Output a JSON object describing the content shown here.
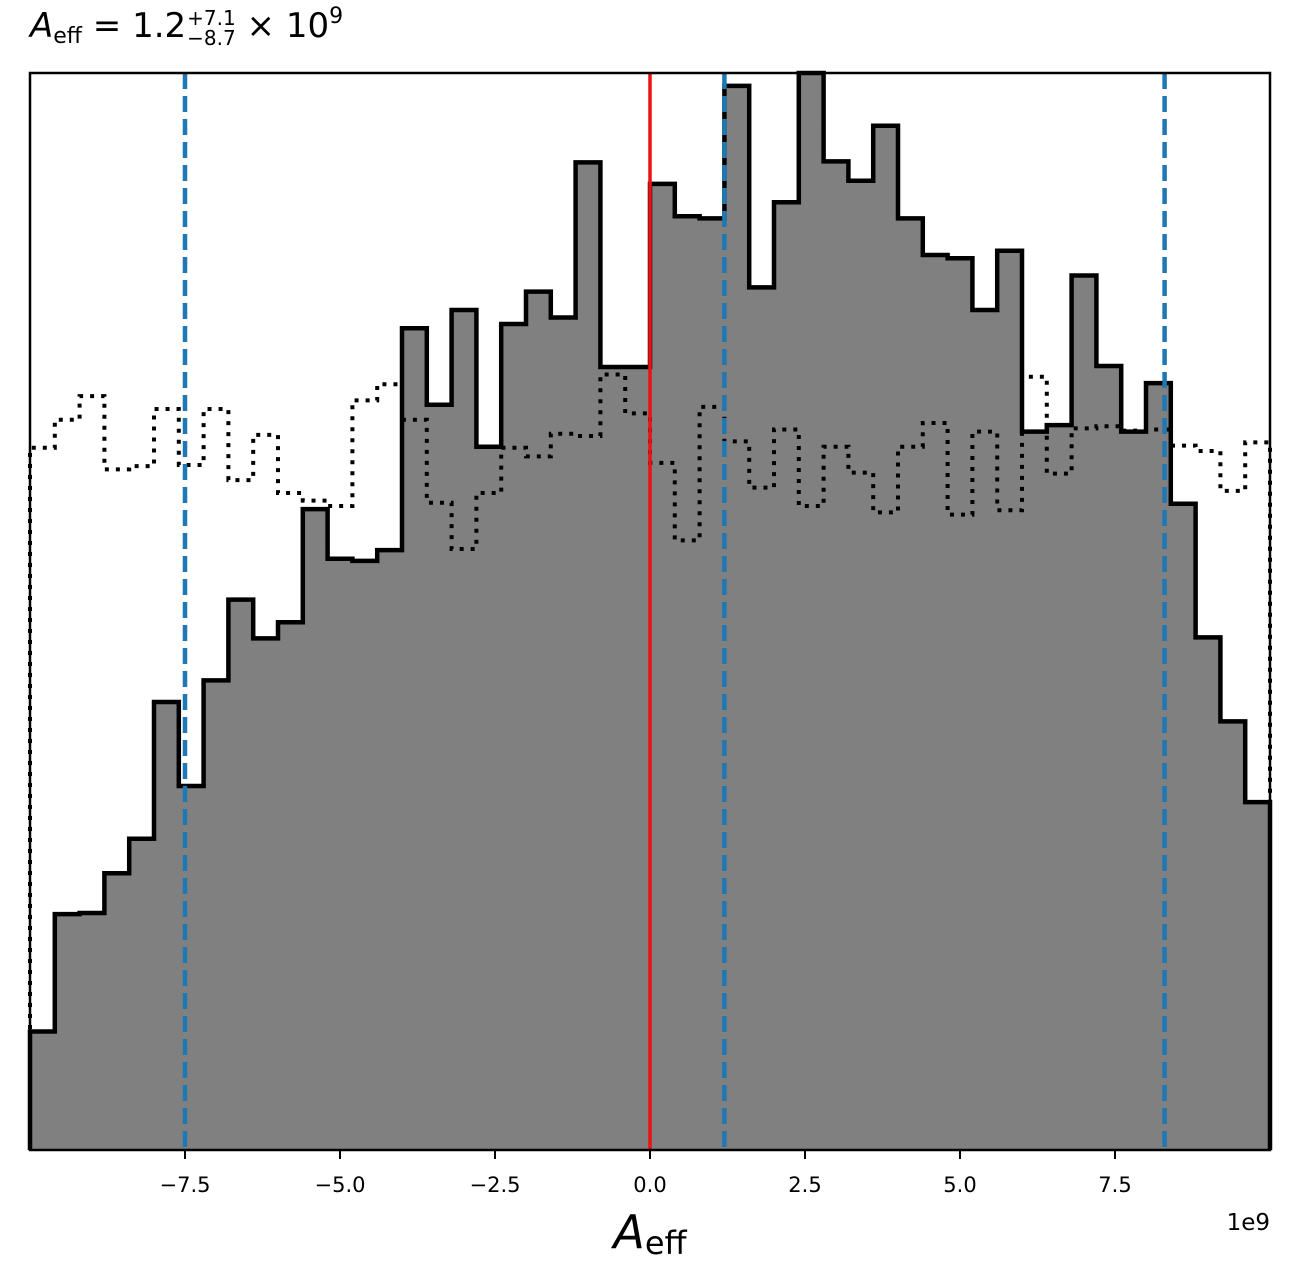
{
  "title": {
    "symbol": "A",
    "subscript": "eff",
    "equals": " = ",
    "median": "1.2",
    "upper": "+7.1",
    "lower": "−8.7",
    "times": " × 10",
    "exponent": "9"
  },
  "chart_data": {
    "type": "histogram",
    "xlabel_symbol": "A",
    "xlabel_subscript": "eff",
    "offset_label": "1e9",
    "xlim": [
      -10.0,
      10.0
    ],
    "ylim": [
      0,
      1.0
    ],
    "x_ticks": [
      -7.5,
      -5.0,
      -2.5,
      0.0,
      2.5,
      5.0,
      7.5
    ],
    "x_tick_labels": [
      "−7.5",
      "−5.0",
      "−2.5",
      "0.0",
      "2.5",
      "5.0",
      "7.5"
    ],
    "bin_edges": [
      -10.0,
      -9.6,
      -9.2,
      -8.8,
      -8.4,
      -8.0,
      -7.6,
      -7.2,
      -6.8,
      -6.4,
      -6.0,
      -5.6,
      -5.2,
      -4.8,
      -4.4,
      -4.0,
      -3.6,
      -3.2,
      -2.8,
      -2.4,
      -2.0,
      -1.6,
      -1.2,
      -0.8,
      -0.4,
      0.0,
      0.4,
      0.8,
      1.2,
      1.6,
      2.0,
      2.4,
      2.8,
      3.2,
      3.6,
      4.0,
      4.4,
      4.8,
      5.2,
      5.6,
      6.0,
      6.4,
      6.8,
      7.2,
      7.6,
      8.0,
      8.4,
      8.8,
      9.2,
      9.6,
      10.0
    ],
    "posterior_heights": [
      0.11,
      0.219,
      0.22,
      0.257,
      0.289,
      0.416,
      0.338,
      0.436,
      0.511,
      0.475,
      0.49,
      0.595,
      0.549,
      0.547,
      0.557,
      0.763,
      0.692,
      0.78,
      0.653,
      0.767,
      0.797,
      0.773,
      0.917,
      0.727,
      0.727,
      0.897,
      0.867,
      0.865,
      0.988,
      0.801,
      0.88,
      1.0,
      0.918,
      0.9,
      0.951,
      0.865,
      0.831,
      0.828,
      0.78,
      0.835,
      0.667,
      0.673,
      0.812,
      0.728,
      0.667,
      0.712,
      0.6,
      0.476,
      0.398,
      0.323
    ],
    "prior_heights": [
      0.652,
      0.678,
      0.7,
      0.632,
      0.635,
      0.688,
      0.636,
      0.688,
      0.622,
      0.664,
      0.61,
      0.603,
      0.598,
      0.696,
      0.711,
      0.678,
      0.601,
      0.558,
      0.61,
      0.652,
      0.644,
      0.665,
      0.663,
      0.72,
      0.684,
      0.638,
      0.566,
      0.69,
      0.658,
      0.615,
      0.669,
      0.598,
      0.653,
      0.629,
      0.592,
      0.653,
      0.675,
      0.59,
      0.667,
      0.594,
      0.718,
      0.628,
      0.67,
      0.672,
      0.668,
      0.669,
      0.654,
      0.649,
      0.612,
      0.657
    ],
    "posterior_fill": "#808080",
    "posterior_edge": "#000000",
    "prior_style": "dotted",
    "truth_value": 0.0,
    "truth_color": "#ee1111",
    "quantile_lines": [
      -7.5,
      1.2,
      8.3
    ],
    "quantile_color": "#1f77b4",
    "grid": false
  }
}
